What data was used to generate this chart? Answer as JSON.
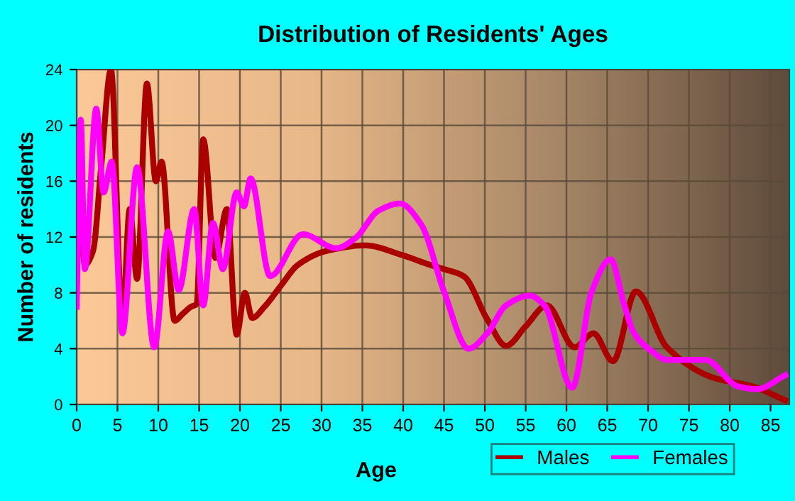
{
  "chart_data": {
    "type": "line",
    "title": "Distribution of Residents' Ages",
    "xlabel": "Age",
    "ylabel": "Number of residents",
    "xlim": [
      0,
      87.3
    ],
    "xticks": [
      0,
      5,
      10,
      15,
      20,
      25,
      30,
      35,
      40,
      45,
      50,
      55,
      60,
      65,
      70,
      75,
      80,
      85
    ],
    "ylim": [
      0,
      24
    ],
    "yticks": [
      0,
      4,
      8,
      12,
      16,
      20,
      24
    ],
    "grid": true,
    "legend": "bottom right",
    "marker": "none",
    "line_style": "solid",
    "series": [
      {
        "name": "Males",
        "color": "#aa0000",
        "x": [
          0,
          0.4,
          1,
          2,
          3,
          4.2,
          5.6,
          6.5,
          7.4,
          8.6,
          9.7,
          10.4,
          12,
          13,
          14,
          14.7,
          15.5,
          17,
          18.4,
          19.6,
          20.6,
          21.5,
          23,
          25,
          27.1,
          30.6,
          35.3,
          39.9,
          43.3,
          45,
          47.4,
          50.3,
          52.6,
          55,
          57.6,
          61,
          63.3,
          65.7,
          68.5,
          72.3,
          78.1,
          82.8,
          86.8
        ],
        "values": [
          11,
          13,
          10,
          11,
          17,
          24,
          6,
          14,
          9,
          23,
          16,
          17.4,
          6,
          6.5,
          7,
          7.2,
          19,
          10.5,
          14,
          5,
          8,
          6.2,
          7,
          8.5,
          10,
          11,
          11.4,
          10.7,
          10,
          9.7,
          9.2,
          6.1,
          4.2,
          5.6,
          7.1,
          4.1,
          5.1,
          3.1,
          8.1,
          4.1,
          1.9,
          1.3,
          0.3
        ]
      },
      {
        "name": "Females",
        "color": "#ff00ff",
        "x": [
          0,
          0.5,
          1,
          2.4,
          3.3,
          4.3,
          5.6,
          7.4,
          9.5,
          11.2,
          12.5,
          14.4,
          15.5,
          16.7,
          17.9,
          19.6,
          20.5,
          21.3,
          23.7,
          27.7,
          31.8,
          34.1,
          37,
          39.6,
          42.2,
          45,
          48,
          50.3,
          52.6,
          55.5,
          57.3,
          60.7,
          63.1,
          65.4,
          67.1,
          68.3,
          70.5,
          72.3,
          77,
          81,
          83.3,
          86.8
        ],
        "values": [
          7,
          20.4,
          9.7,
          21.2,
          15.2,
          17.4,
          5.1,
          17,
          4.1,
          12.4,
          8.2,
          14,
          7.1,
          13,
          9.7,
          15.2,
          14.2,
          16.2,
          9.2,
          12.2,
          11.2,
          11.9,
          13.9,
          14.4,
          12.9,
          8.1,
          4,
          5.1,
          7.1,
          7.8,
          7.1,
          1.2,
          8.1,
          10.4,
          7.1,
          5.1,
          3.8,
          3.2,
          3.2,
          1.3,
          1.1,
          2.1
        ]
      }
    ]
  }
}
